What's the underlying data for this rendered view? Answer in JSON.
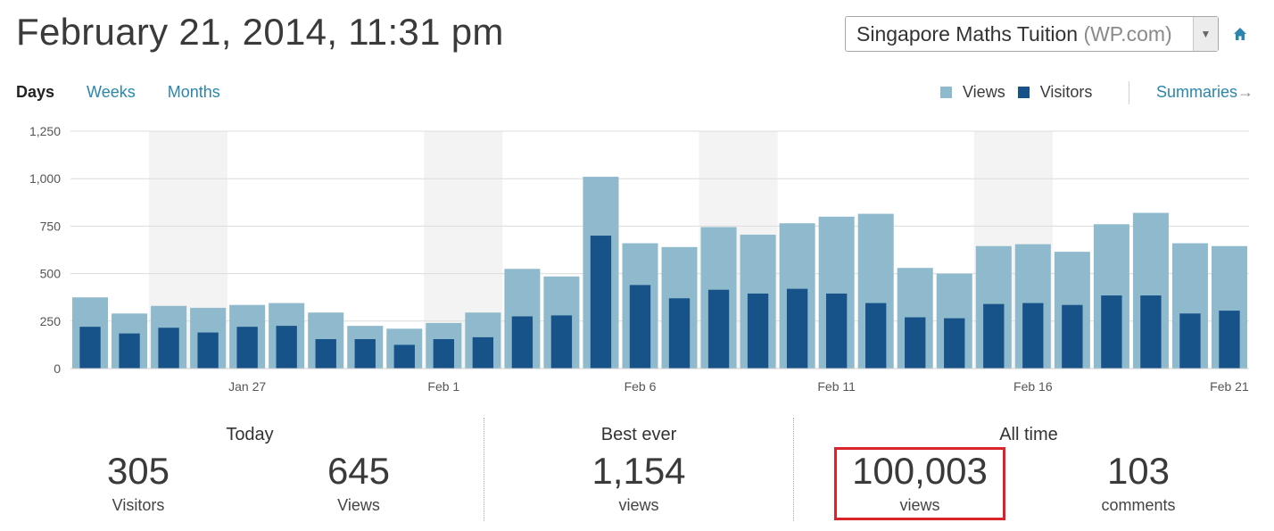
{
  "header": {
    "title": "February 21, 2014, 11:31 pm",
    "site_select": {
      "name": "Singapore Maths Tuition",
      "suffix": "(WP.com)"
    },
    "home_icon": "home-icon"
  },
  "period_tabs": [
    {
      "label": "Days",
      "active": true
    },
    {
      "label": "Weeks",
      "active": false
    },
    {
      "label": "Months",
      "active": false
    }
  ],
  "legend": {
    "views_label": "Views",
    "visitors_label": "Visitors",
    "views_color": "#8fbacd",
    "visitors_color": "#175389",
    "summaries_label": "Summaries",
    "summaries_icon": "arrow-right-icon"
  },
  "chart_data": {
    "type": "bar",
    "title": "",
    "xlabel": "",
    "ylabel": "",
    "ylim": [
      0,
      1250
    ],
    "yticks": [
      "0",
      "250",
      "500",
      "750",
      "1,000",
      "1,250"
    ],
    "ytick_values": [
      0,
      250,
      500,
      750,
      1000,
      1250
    ],
    "x_tick_labels": [
      {
        "label": "Jan 27",
        "index": 4
      },
      {
        "label": "Feb 1",
        "index": 9
      },
      {
        "label": "Feb 6",
        "index": 14
      },
      {
        "label": "Feb 11",
        "index": 19
      },
      {
        "label": "Feb 16",
        "index": 24
      },
      {
        "label": "Feb 21",
        "index": 29
      }
    ],
    "weekend_indices": [
      2,
      3,
      9,
      10,
      16,
      17,
      23,
      24
    ],
    "grid": true,
    "legend_position": "top-right",
    "series": [
      {
        "name": "Views",
        "color": "#8fbacd",
        "values": [
          375,
          290,
          330,
          320,
          335,
          345,
          295,
          225,
          210,
          240,
          295,
          525,
          485,
          1010,
          660,
          640,
          745,
          705,
          765,
          800,
          815,
          530,
          500,
          645,
          655,
          615,
          760,
          820,
          660,
          645
        ]
      },
      {
        "name": "Visitors",
        "color": "#175389",
        "values": [
          220,
          185,
          215,
          190,
          220,
          225,
          155,
          155,
          125,
          155,
          165,
          275,
          280,
          700,
          440,
          370,
          415,
          395,
          420,
          395,
          345,
          270,
          265,
          340,
          345,
          335,
          385,
          385,
          290,
          305
        ]
      }
    ]
  },
  "stats": {
    "today": {
      "heading": "Today",
      "visitors_value": "305",
      "visitors_label": "Visitors",
      "views_value": "645",
      "views_label": "Views"
    },
    "best_ever": {
      "heading": "Best ever",
      "value": "1,154",
      "label": "views"
    },
    "all_time": {
      "heading": "All time",
      "views_value": "100,003",
      "views_label": "views",
      "comments_value": "103",
      "comments_label": "comments"
    }
  }
}
